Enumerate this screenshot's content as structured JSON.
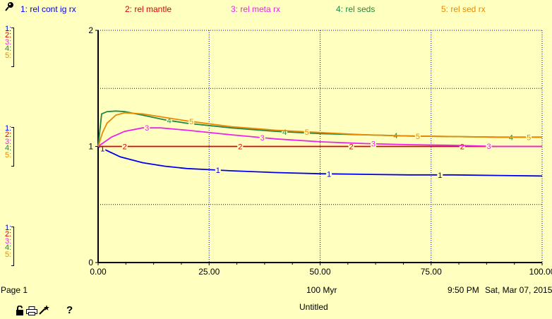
{
  "legend": [
    {
      "id": "1",
      "label": "1: rel cont ig rx",
      "color": "#0000ee"
    },
    {
      "id": "2",
      "label": "2: rel mantle",
      "color": "#dd0000"
    },
    {
      "id": "3",
      "label": "3: rel meta rx",
      "color": "#ee22ee"
    },
    {
      "id": "4",
      "label": "4: rel seds",
      "color": "#228844"
    },
    {
      "id": "5",
      "label": "5: rel sed rx",
      "color": "#ee8800"
    }
  ],
  "axis_markers": [
    "1:",
    "2:",
    "3:",
    "4:",
    "5:"
  ],
  "footer": {
    "page": "Page 1",
    "x_unit": "100 Myr",
    "time": "9:50 PM",
    "date": "Sat, Mar 07, 2015",
    "title": "Untitled",
    "help": "?"
  },
  "chart_data": {
    "type": "line",
    "xlim": [
      0,
      100
    ],
    "ylim": [
      0,
      2
    ],
    "x_ticks": [
      "0.00",
      "25.00",
      "50.00",
      "75.00",
      "100.00"
    ],
    "y_ticks": [
      "0",
      "1",
      "2"
    ],
    "grid": true,
    "series": [
      {
        "name": "1",
        "color": "#0000ee",
        "x": [
          0,
          5,
          10,
          15,
          20,
          25,
          30,
          40,
          50,
          60,
          70,
          80,
          90,
          100
        ],
        "y": [
          1.0,
          0.91,
          0.86,
          0.83,
          0.81,
          0.8,
          0.79,
          0.775,
          0.765,
          0.76,
          0.755,
          0.755,
          0.75,
          0.745
        ],
        "label_x": [
          1,
          27,
          52,
          77
        ]
      },
      {
        "name": "2",
        "color": "#dd0000",
        "x": [
          0,
          25,
          50,
          75,
          100
        ],
        "y": [
          1.0,
          1.0,
          1.0,
          1.0,
          1.0
        ],
        "label_x": [
          6,
          32,
          57,
          82
        ]
      },
      {
        "name": "3",
        "color": "#ee22ee",
        "x": [
          0,
          3,
          6,
          10,
          14,
          20,
          30,
          40,
          50,
          60,
          70,
          80,
          90,
          100
        ],
        "y": [
          1.0,
          1.08,
          1.13,
          1.16,
          1.16,
          1.14,
          1.1,
          1.065,
          1.04,
          1.025,
          1.015,
          1.01,
          1.0,
          1.0
        ],
        "label_x": [
          11,
          37,
          62,
          88
        ]
      },
      {
        "name": "4",
        "color": "#228844",
        "x": [
          0,
          0.8,
          2,
          4,
          6,
          10,
          15,
          20,
          30,
          40,
          50,
          60,
          70,
          80,
          90,
          100
        ],
        "y": [
          1.0,
          1.28,
          1.3,
          1.305,
          1.3,
          1.27,
          1.23,
          1.2,
          1.16,
          1.13,
          1.11,
          1.1,
          1.09,
          1.085,
          1.08,
          1.08
        ],
        "label_x": [
          16,
          42,
          67,
          93
        ]
      },
      {
        "name": "5",
        "color": "#ee8800",
        "x": [
          0,
          1,
          2,
          4,
          6,
          10,
          15,
          20,
          30,
          40,
          50,
          60,
          70,
          80,
          90,
          100
        ],
        "y": [
          1.0,
          1.12,
          1.2,
          1.27,
          1.29,
          1.28,
          1.25,
          1.22,
          1.17,
          1.14,
          1.12,
          1.1,
          1.09,
          1.085,
          1.08,
          1.08
        ],
        "label_x": [
          21,
          47,
          72,
          97
        ]
      }
    ]
  }
}
